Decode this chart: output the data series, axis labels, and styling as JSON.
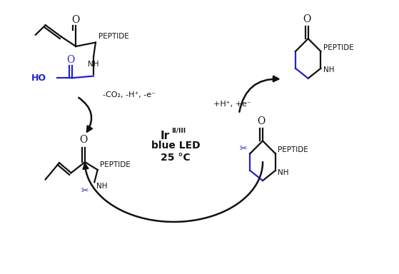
{
  "background_color": "#ffffff",
  "black_color": "#111111",
  "blue_color": "#2222cc",
  "figsize": [
    5.59,
    3.84
  ],
  "dpi": 100,
  "arrow1_text": "-CO₂, -H⁺, -e⁻",
  "arrow2_text": "+H⁺, +e⁻",
  "catalyst_line1": "Ir",
  "catalyst_sup": "II/III",
  "catalyst_line2": "blue LED",
  "catalyst_line3": "25 °C"
}
